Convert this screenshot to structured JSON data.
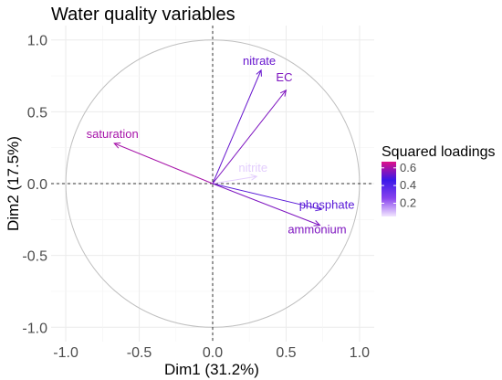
{
  "chart_data": {
    "type": "scatter",
    "subtype": "pca-variable-correlation-circle",
    "title": "Water quality variables",
    "xlabel": "Dim1 (31.2%)",
    "ylabel": "Dim2 (17.5%)",
    "xlim": [
      -1.1,
      1.1
    ],
    "ylim": [
      -1.1,
      1.1
    ],
    "xticks": [
      "-1.0",
      "-0.5",
      "0.0",
      "0.5",
      "1.0"
    ],
    "xtick_values": [
      -1.0,
      -0.5,
      0.0,
      0.5,
      1.0
    ],
    "yticks": [
      "1.0",
      "0.5",
      "0.0",
      "-0.5",
      "-1.0"
    ],
    "ytick_values": [
      1.0,
      0.5,
      0.0,
      -0.5,
      -1.0
    ],
    "grid": true,
    "unit_circle": true,
    "variables": [
      {
        "name": "nitrate",
        "x": 0.33,
        "y": 0.79,
        "loading": 0.52
      },
      {
        "name": "EC",
        "x": 0.5,
        "y": 0.65,
        "loading": 0.55
      },
      {
        "name": "saturation",
        "x": -0.67,
        "y": 0.28,
        "loading": 0.6
      },
      {
        "name": "nitrite",
        "x": 0.3,
        "y": 0.05,
        "loading": 0.08
      },
      {
        "name": "phosphate",
        "x": 0.74,
        "y": -0.18,
        "loading": 0.5
      },
      {
        "name": "ammonium",
        "x": 0.73,
        "y": -0.29,
        "loading": 0.55
      }
    ],
    "legend": {
      "title": "Squared loadings",
      "ticks": [
        "0.6",
        "0.4",
        "0.2"
      ],
      "tick_values": [
        0.6,
        0.4,
        0.2
      ],
      "range": [
        0.05,
        0.67
      ],
      "colors": [
        "#f2e6ff",
        "#8844ee",
        "#3a18e8",
        "#dd1188"
      ],
      "placement": "right"
    }
  }
}
